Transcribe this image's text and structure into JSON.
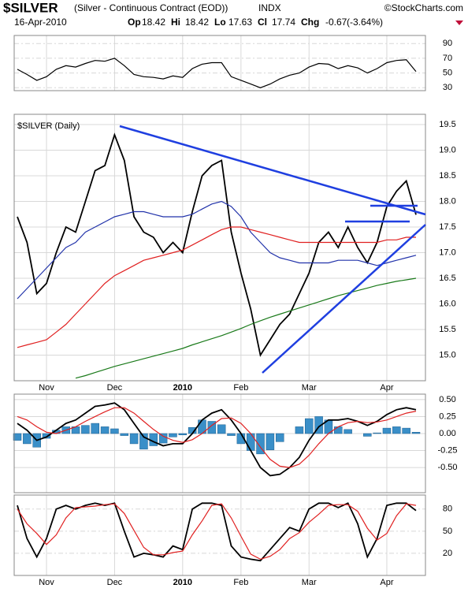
{
  "header": {
    "symbol": "$SILVER",
    "description": "(Silver - Continuous Contract (EOD))",
    "exchange": "INDX",
    "brand": "©StockCharts.com",
    "date": "16-Apr-2010",
    "quote": [
      {
        "label": "Op",
        "value": 18.42
      },
      {
        "label": "Hi",
        "value": 18.42
      },
      {
        "label": "Lo",
        "value": 17.63
      },
      {
        "label": "Cl",
        "value": 17.74
      },
      {
        "label": "Chg",
        "value": -0.67
      }
    ],
    "change_pct": "(-3.64%)"
  },
  "chart_data": [
    {
      "type": "line",
      "ylim": [
        26,
        101
      ],
      "yticks": [
        30,
        50,
        70,
        90
      ],
      "grid": true,
      "series": [
        {
          "color": "#000000",
          "values": [
            55,
            48,
            40,
            45,
            55,
            60,
            58,
            63,
            67,
            66,
            70,
            60,
            48,
            45,
            44,
            42,
            46,
            44,
            56,
            62,
            64,
            64,
            45,
            40,
            35,
            30,
            35,
            42,
            47,
            50,
            58,
            63,
            62,
            56,
            60,
            57,
            50,
            56,
            64,
            67,
            68,
            52
          ]
        }
      ]
    },
    {
      "type": "line",
      "title": "$SILVER (Daily)",
      "ylim": [
        14.5,
        19.7
      ],
      "grid": true,
      "yticks": [
        {
          "value": 15,
          "label": "15.0"
        },
        15.5,
        {
          "value": 16,
          "label": "16.0"
        },
        16.5,
        {
          "value": 17,
          "label": "17.0"
        },
        17.5,
        {
          "value": 18,
          "label": "18.0"
        },
        18.5,
        {
          "value": 19,
          "label": "19.0"
        },
        19.5
      ],
      "categories": [
        null,
        null,
        null,
        "Nov",
        null,
        null,
        null,
        null,
        null,
        null,
        "Dec",
        null,
        null,
        null,
        null,
        null,
        null,
        "2010",
        null,
        null,
        null,
        null,
        null,
        "Feb",
        null,
        null,
        null,
        null,
        null,
        null,
        "Mar",
        null,
        null,
        null,
        null,
        null,
        null,
        null,
        "Apr",
        null,
        null,
        null
      ],
      "series": [
        {
          "color": "#000000",
          "values": [
            17.7,
            17.2,
            16.2,
            16.4,
            17.0,
            17.5,
            17.4,
            18.0,
            18.6,
            18.7,
            19.3,
            18.8,
            17.7,
            17.4,
            17.3,
            17.0,
            17.2,
            17.0,
            17.8,
            18.5,
            18.7,
            18.8,
            17.4,
            16.6,
            15.9,
            15.0,
            15.3,
            15.6,
            15.8,
            16.2,
            16.6,
            17.2,
            17.4,
            17.1,
            17.5,
            17.1,
            16.8,
            17.2,
            17.9,
            18.2,
            18.4,
            17.74
          ]
        },
        {
          "color": "#2233aa",
          "values": [
            16.1,
            16.3,
            16.5,
            16.7,
            16.9,
            17.1,
            17.2,
            17.4,
            17.5,
            17.6,
            17.7,
            17.75,
            17.8,
            17.8,
            17.75,
            17.7,
            17.7,
            17.7,
            17.75,
            17.85,
            17.95,
            18.0,
            17.9,
            17.7,
            17.4,
            17.2,
            17.0,
            16.9,
            16.85,
            16.8,
            16.8,
            16.8,
            16.8,
            16.85,
            16.85,
            16.85,
            16.8,
            16.75,
            16.8,
            16.85,
            16.9,
            16.95
          ]
        },
        {
          "color": "#e02020",
          "values": [
            15.15,
            15.2,
            15.25,
            15.3,
            15.45,
            15.6,
            15.8,
            16.0,
            16.2,
            16.4,
            16.55,
            16.65,
            16.75,
            16.85,
            16.9,
            16.95,
            17.0,
            17.05,
            17.15,
            17.25,
            17.35,
            17.45,
            17.5,
            17.5,
            17.45,
            17.4,
            17.35,
            17.3,
            17.25,
            17.2,
            17.2,
            17.2,
            17.2,
            17.2,
            17.2,
            17.2,
            17.2,
            17.2,
            17.25,
            17.25,
            17.3,
            17.3
          ]
        },
        {
          "color": "#1a7a1a",
          "values": [
            null,
            null,
            null,
            null,
            null,
            null,
            14.55,
            14.6,
            14.66,
            14.72,
            14.78,
            14.83,
            14.88,
            14.93,
            14.98,
            15.03,
            15.08,
            15.13,
            15.2,
            15.26,
            15.32,
            15.38,
            15.45,
            15.52,
            15.6,
            15.67,
            15.74,
            15.8,
            15.86,
            15.92,
            15.98,
            16.04,
            16.1,
            16.16,
            16.21,
            16.26,
            16.31,
            16.36,
            16.4,
            16.44,
            16.47,
            16.5
          ]
        }
      ]
    },
    {
      "type": "line",
      "ylim": [
        -0.87,
        0.58
      ],
      "grid": true,
      "yticks": [
        {
          "value": -0.5,
          "label": "-0.50"
        },
        -0.25,
        {
          "value": 0,
          "label": "0.00"
        },
        0.25,
        {
          "value": 0.5,
          "label": "0.50"
        }
      ],
      "histogram": {
        "color": "#3a8fc8",
        "values": [
          -0.1,
          -0.15,
          -0.2,
          -0.07,
          0.05,
          0.1,
          0.1,
          0.12,
          0.15,
          0.1,
          0.07,
          -0.03,
          -0.15,
          -0.23,
          -0.18,
          -0.14,
          -0.05,
          -0.02,
          0.09,
          0.2,
          0.18,
          0.13,
          -0.03,
          -0.15,
          -0.25,
          -0.3,
          -0.24,
          -0.12,
          0.0,
          0.1,
          0.22,
          0.25,
          0.2,
          0.1,
          0.06,
          0.0,
          -0.04,
          0.01,
          0.08,
          0.1,
          0.08,
          0.02
        ]
      },
      "series": [
        {
          "color": "#000000",
          "values": [
            0.15,
            0.05,
            -0.1,
            -0.05,
            0.05,
            0.15,
            0.2,
            0.3,
            0.4,
            0.42,
            0.45,
            0.35,
            0.15,
            -0.05,
            -0.12,
            -0.18,
            -0.15,
            -0.15,
            0.0,
            0.2,
            0.3,
            0.35,
            0.2,
            0.0,
            -0.25,
            -0.5,
            -0.62,
            -0.6,
            -0.5,
            -0.35,
            -0.1,
            0.1,
            0.2,
            0.2,
            0.22,
            0.18,
            0.12,
            0.18,
            0.28,
            0.35,
            0.38,
            0.35
          ]
        },
        {
          "color": "#e02020",
          "values": [
            0.25,
            0.2,
            0.1,
            0.02,
            0.0,
            0.05,
            0.1,
            0.18,
            0.25,
            0.32,
            0.38,
            0.38,
            0.3,
            0.18,
            0.06,
            -0.04,
            -0.1,
            -0.13,
            -0.09,
            0.0,
            0.12,
            0.22,
            0.23,
            0.15,
            0.0,
            -0.2,
            -0.38,
            -0.48,
            -0.5,
            -0.45,
            -0.32,
            -0.15,
            0.0,
            0.1,
            0.16,
            0.18,
            0.16,
            0.17,
            0.2,
            0.25,
            0.3,
            0.33
          ]
        }
      ]
    },
    {
      "type": "line",
      "ylim": [
        -10,
        99
      ],
      "yticks": [
        20,
        50,
        80
      ],
      "grid": true,
      "categories": [
        null,
        null,
        null,
        "Nov",
        null,
        null,
        null,
        null,
        null,
        null,
        "Dec",
        null,
        null,
        null,
        null,
        null,
        null,
        "2010",
        null,
        null,
        null,
        null,
        null,
        "Feb",
        null,
        null,
        null,
        null,
        null,
        null,
        "Mar",
        null,
        null,
        null,
        null,
        null,
        null,
        null,
        "Apr",
        null,
        null,
        null
      ],
      "series": [
        {
          "color": "#000000",
          "values": [
            85,
            40,
            15,
            40,
            80,
            85,
            80,
            85,
            88,
            85,
            88,
            50,
            15,
            20,
            18,
            15,
            30,
            25,
            80,
            88,
            88,
            85,
            30,
            15,
            12,
            10,
            25,
            40,
            55,
            50,
            80,
            88,
            88,
            82,
            88,
            60,
            15,
            40,
            85,
            88,
            88,
            78
          ]
        },
        {
          "color": "#e02020",
          "values": [
            80,
            60,
            47,
            32,
            45,
            68,
            82,
            83,
            84,
            86,
            87,
            74,
            51,
            28,
            18,
            18,
            21,
            23,
            45,
            64,
            85,
            87,
            68,
            43,
            19,
            12,
            16,
            25,
            40,
            48,
            62,
            73,
            85,
            86,
            86,
            77,
            54,
            38,
            47,
            71,
            87,
            85
          ]
        }
      ]
    }
  ]
}
